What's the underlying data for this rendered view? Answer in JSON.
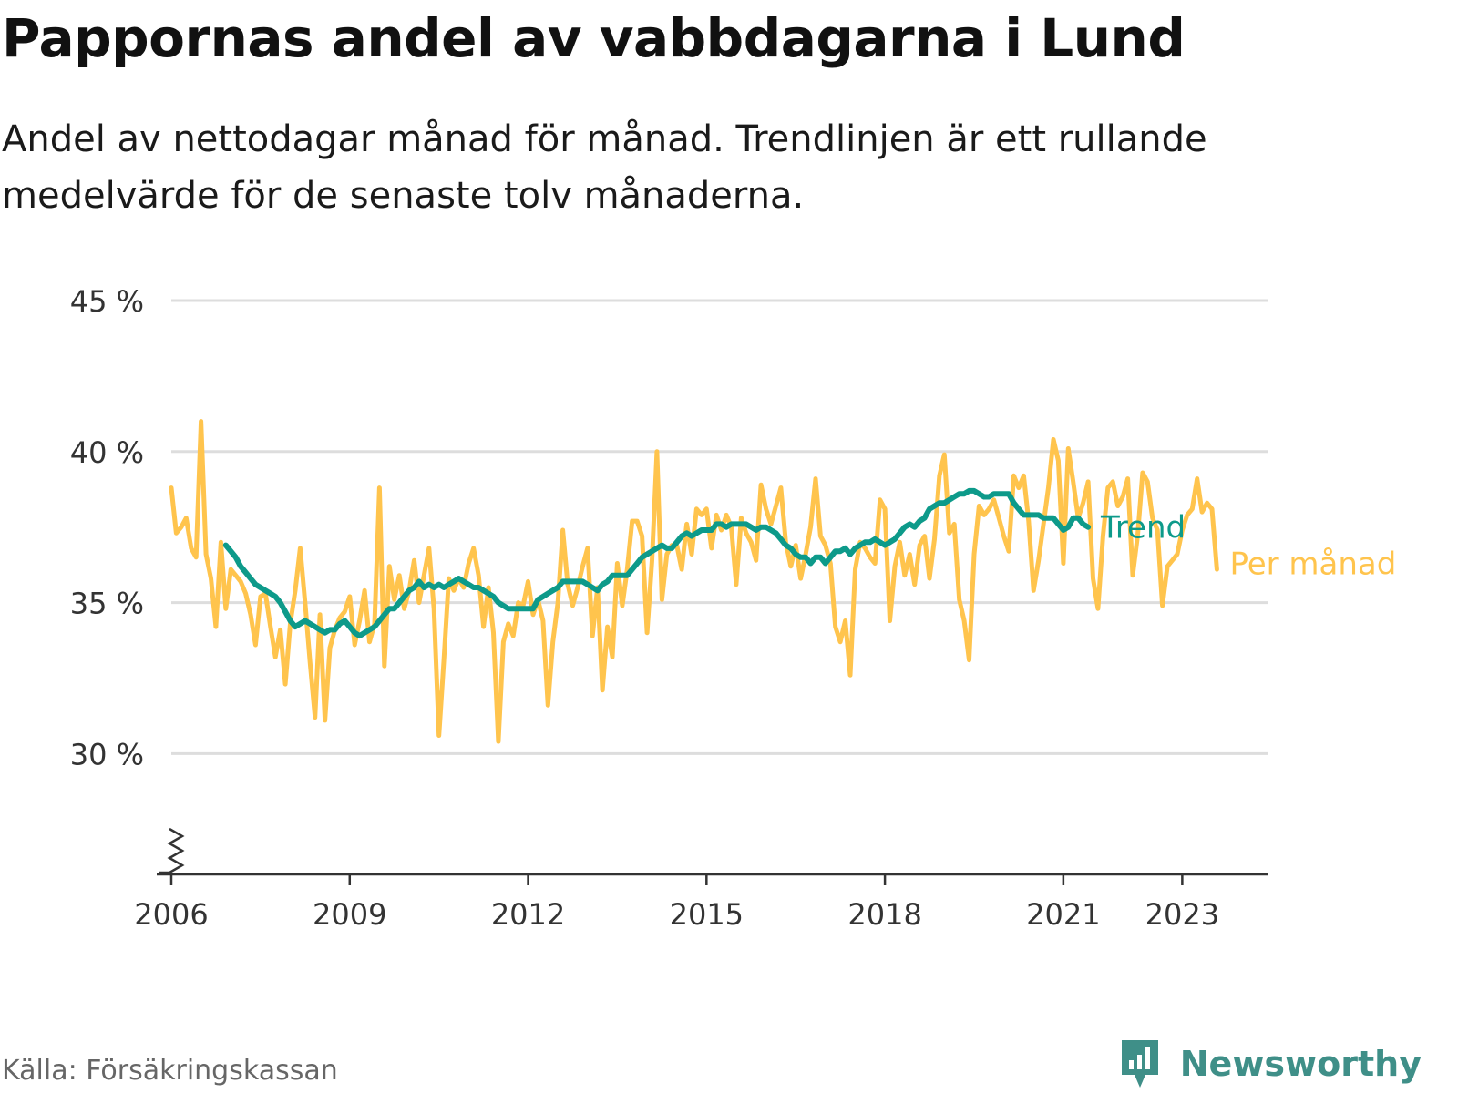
{
  "title": "Pappornas andel av vabbdagarna i Lund",
  "subtitle": "Andel av nettodagar månad för månad. Trendlinjen är ett rullande medelvärde för de senaste tolv månaderna.",
  "source": "Källa: Försäkringskassan",
  "brand": {
    "name": "Newsworthy",
    "icon": "newsworthy-chart-bubble-icon",
    "color": "#3f8f88"
  },
  "colors": {
    "monthly": "#FFC44D",
    "trend": "#0D9A8A",
    "grid": "#DDDDDD",
    "axis": "#333333"
  },
  "chart_data": {
    "type": "line",
    "ylim": [
      26,
      45
    ],
    "y_axis_break": true,
    "grid": true,
    "y_ticks": [
      30,
      35,
      40,
      45
    ],
    "y_tick_labels": [
      "30 %",
      "35 %",
      "40 %",
      "45 %"
    ],
    "x_ticks": [
      2006,
      2009,
      2012,
      2015,
      2018,
      2021,
      2023
    ],
    "x_tick_labels": [
      "2006",
      "2009",
      "2012",
      "2015",
      "2018",
      "2021",
      "2023"
    ],
    "legend": "end-of-line labels",
    "series": [
      {
        "name": "Per månad",
        "color": "#FFC44D",
        "start": "2006-01",
        "values": [
          38.8,
          37.3,
          37.5,
          37.8,
          36.8,
          36.5,
          41.0,
          36.6,
          35.8,
          34.2,
          37.0,
          34.8,
          36.1,
          35.9,
          35.7,
          35.3,
          34.6,
          33.6,
          35.2,
          35.3,
          34.2,
          33.2,
          34.1,
          32.3,
          34.3,
          35.4,
          36.8,
          35.0,
          33.0,
          31.2,
          34.6,
          31.1,
          33.5,
          34.1,
          34.5,
          34.7,
          35.2,
          33.6,
          34.4,
          35.4,
          33.7,
          34.3,
          38.8,
          32.9,
          36.2,
          35.1,
          35.9,
          34.8,
          35.4,
          36.4,
          35.0,
          35.9,
          36.8,
          34.8,
          30.6,
          33.1,
          35.8,
          35.4,
          35.8,
          35.5,
          36.3,
          36.8,
          35.9,
          34.2,
          35.5,
          34.0,
          30.4,
          33.7,
          34.3,
          33.9,
          35.0,
          34.9,
          35.7,
          34.6,
          35.1,
          34.4,
          31.6,
          33.7,
          35.0,
          37.4,
          35.6,
          34.9,
          35.5,
          36.2,
          36.8,
          33.9,
          35.5,
          32.1,
          34.2,
          33.2,
          36.3,
          34.9,
          36.1,
          37.7,
          37.7,
          37.2,
          34.0,
          36.4,
          40.0,
          35.1,
          36.6,
          36.9,
          36.9,
          36.1,
          37.6,
          36.6,
          38.1,
          37.9,
          38.1,
          36.8,
          37.9,
          37.4,
          37.9,
          37.5,
          35.6,
          37.8,
          37.3,
          37.0,
          36.4,
          38.9,
          38.1,
          37.6,
          38.2,
          38.8,
          37.0,
          36.2,
          36.9,
          35.8,
          36.6,
          37.5,
          39.1,
          37.2,
          36.9,
          36.3,
          34.2,
          33.7,
          34.4,
          32.6,
          36.1,
          37.0,
          36.8,
          36.5,
          36.3,
          38.4,
          38.1,
          34.4,
          36.2,
          37.0,
          35.9,
          36.6,
          35.6,
          36.9,
          37.2,
          35.8,
          37.1,
          39.2,
          39.9,
          37.3,
          37.6,
          35.1,
          34.4,
          33.1,
          36.6,
          38.2,
          37.9,
          38.1,
          38.4,
          37.8,
          37.2,
          36.7,
          39.2,
          38.8,
          39.2,
          37.7,
          35.4,
          36.4,
          37.6,
          38.8,
          40.4,
          39.7,
          36.3,
          40.1,
          39.0,
          37.8,
          38.3,
          39.0,
          35.8,
          34.8,
          37.2,
          38.8,
          39.0,
          38.2,
          38.5,
          39.1,
          35.9,
          37.2,
          39.3,
          39.0,
          37.8,
          37.4,
          34.9,
          36.2,
          36.4,
          36.6,
          37.4,
          37.9,
          38.1,
          39.1,
          38.0,
          38.3,
          38.1,
          36.1
        ],
        "label_end": {
          "text": "Per månad",
          "y": 36.3
        }
      },
      {
        "name": "Trend",
        "color": "#0D9A8A",
        "start": "2006-12",
        "values": [
          36.9,
          36.7,
          36.5,
          36.2,
          36.0,
          35.8,
          35.6,
          35.5,
          35.4,
          35.3,
          35.2,
          35.0,
          34.7,
          34.4,
          34.2,
          34.3,
          34.4,
          34.3,
          34.2,
          34.1,
          34.0,
          34.1,
          34.1,
          34.3,
          34.4,
          34.2,
          34.0,
          33.9,
          34.0,
          34.1,
          34.2,
          34.4,
          34.6,
          34.8,
          34.8,
          35.0,
          35.2,
          35.4,
          35.5,
          35.7,
          35.5,
          35.6,
          35.5,
          35.6,
          35.5,
          35.6,
          35.7,
          35.8,
          35.7,
          35.6,
          35.5,
          35.5,
          35.4,
          35.3,
          35.2,
          35.0,
          34.9,
          34.8,
          34.8,
          34.8,
          34.8,
          34.8,
          34.8,
          35.1,
          35.2,
          35.3,
          35.4,
          35.5,
          35.7,
          35.7,
          35.7,
          35.7,
          35.7,
          35.6,
          35.5,
          35.4,
          35.6,
          35.7,
          35.9,
          35.9,
          35.9,
          35.9,
          36.1,
          36.3,
          36.5,
          36.6,
          36.7,
          36.8,
          36.9,
          36.8,
          36.8,
          37.0,
          37.2,
          37.3,
          37.2,
          37.3,
          37.4,
          37.4,
          37.4,
          37.6,
          37.6,
          37.5,
          37.6,
          37.6,
          37.6,
          37.6,
          37.5,
          37.4,
          37.5,
          37.5,
          37.4,
          37.3,
          37.1,
          36.9,
          36.8,
          36.6,
          36.5,
          36.5,
          36.3,
          36.5,
          36.5,
          36.3,
          36.5,
          36.7,
          36.7,
          36.8,
          36.6,
          36.8,
          36.9,
          37.0,
          37.0,
          37.1,
          37.0,
          36.9,
          37.0,
          37.1,
          37.3,
          37.5,
          37.6,
          37.5,
          37.7,
          37.8,
          38.1,
          38.2,
          38.3,
          38.3,
          38.4,
          38.5,
          38.6,
          38.6,
          38.7,
          38.7,
          38.6,
          38.5,
          38.5,
          38.6,
          38.6,
          38.6,
          38.6,
          38.3,
          38.1,
          37.9,
          37.9,
          37.9,
          37.9,
          37.8,
          37.8,
          37.8,
          37.6,
          37.4,
          37.5,
          37.8,
          37.8,
          37.6,
          37.5
        ],
        "label_end": {
          "text": "Trend",
          "y": 37.5
        }
      }
    ]
  }
}
